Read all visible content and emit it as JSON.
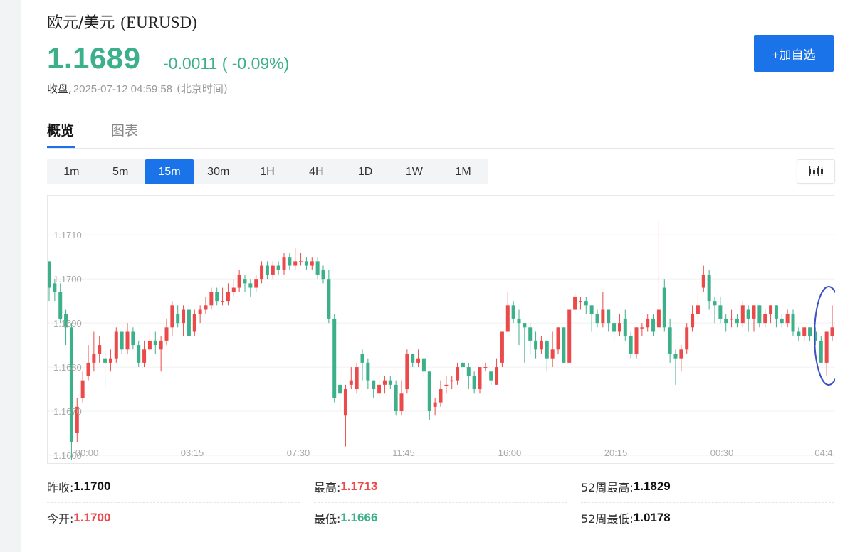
{
  "header": {
    "name": "欧元/美元",
    "code": "(EURUSD)",
    "price": "1.1689",
    "change": "-0.0011 ( -0.09%)",
    "status_label": "收盘,",
    "timestamp": "2025-07-12 04:59:58",
    "timezone": "(北京时间)",
    "watch_button": "+加自选"
  },
  "tabs": [
    "概览",
    "图表"
  ],
  "periods": [
    "1m",
    "5m",
    "15m",
    "30m",
    "1H",
    "4H",
    "1D",
    "1W",
    "1M"
  ],
  "active_period": "15m",
  "chart_type_icon": "candlestick-icon",
  "colors": {
    "up": "#ea4a4a",
    "down": "#3cb08a",
    "accent": "#1a73e8"
  },
  "chart_data": {
    "type": "candlestick",
    "y_ticks": [
      "1.1710",
      "1.1700",
      "1.1690",
      "1.1680",
      "1.1670",
      "1.1660"
    ],
    "x_ticks": [
      "00:00",
      "03:15",
      "07:30",
      "11:45",
      "16:00",
      "20:15",
      "00:30",
      "04:4"
    ],
    "ylim": [
      1.166,
      1.1716
    ],
    "grid": true,
    "note": "candles listed as [open, close, high, low], up=red, down=green",
    "candles": [
      [
        1.1704,
        1.1698,
        1.1704,
        1.1695
      ],
      [
        1.1699,
        1.1697,
        1.17,
        1.1695
      ],
      [
        1.1697,
        1.1691,
        1.1699,
        1.169
      ],
      [
        1.1692,
        1.1689,
        1.1693,
        1.1685
      ],
      [
        1.1689,
        1.1663,
        1.169,
        1.1659
      ],
      [
        1.1665,
        1.1671,
        1.1673,
        1.1663
      ],
      [
        1.1673,
        1.1677,
        1.1679,
        1.1672
      ],
      [
        1.1678,
        1.1681,
        1.1685,
        1.1677
      ],
      [
        1.1681,
        1.1683,
        1.1688,
        1.1679
      ],
      [
        1.1683,
        1.1685,
        1.1687,
        1.1681
      ],
      [
        1.1682,
        1.1681,
        1.1684,
        1.1675
      ],
      [
        1.1681,
        1.1682,
        1.1684,
        1.1679
      ],
      [
        1.1682,
        1.1688,
        1.1689,
        1.1681
      ],
      [
        1.1688,
        1.1684,
        1.1688,
        1.1683
      ],
      [
        1.1684,
        1.1688,
        1.169,
        1.1683
      ],
      [
        1.1688,
        1.1685,
        1.1689,
        1.1684
      ],
      [
        1.1685,
        1.1681,
        1.1686,
        1.168
      ],
      [
        1.1681,
        1.1684,
        1.1686,
        1.168
      ],
      [
        1.1684,
        1.1686,
        1.1688,
        1.1683
      ],
      [
        1.1686,
        1.1685,
        1.1688,
        1.1683
      ],
      [
        1.1684,
        1.1686,
        1.1687,
        1.1679
      ],
      [
        1.1686,
        1.1689,
        1.1691,
        1.1685
      ],
      [
        1.1689,
        1.1694,
        1.1695,
        1.1687
      ],
      [
        1.1692,
        1.169,
        1.1694,
        1.1689
      ],
      [
        1.169,
        1.1693,
        1.1694,
        1.1687
      ],
      [
        1.1693,
        1.1687,
        1.1694,
        1.1687
      ],
      [
        1.1688,
        1.1692,
        1.1693,
        1.1687
      ],
      [
        1.1692,
        1.1693,
        1.1694,
        1.169
      ],
      [
        1.1693,
        1.1694,
        1.1696,
        1.1692
      ],
      [
        1.1694,
        1.1697,
        1.1698,
        1.1693
      ],
      [
        1.1697,
        1.1695,
        1.1698,
        1.1694
      ],
      [
        1.1695,
        1.1695,
        1.1698,
        1.1694
      ],
      [
        1.1695,
        1.1697,
        1.1699,
        1.1694
      ],
      [
        1.1697,
        1.1698,
        1.17,
        1.1696
      ],
      [
        1.1698,
        1.1701,
        1.1702,
        1.1697
      ],
      [
        1.17,
        1.1699,
        1.1701,
        1.1697
      ],
      [
        1.1699,
        1.1698,
        1.17,
        1.1696
      ],
      [
        1.1698,
        1.17,
        1.1701,
        1.1697
      ],
      [
        1.17,
        1.1703,
        1.1704,
        1.1699
      ],
      [
        1.1703,
        1.1701,
        1.1704,
        1.17
      ],
      [
        1.1701,
        1.1703,
        1.1704,
        1.17
      ],
      [
        1.1703,
        1.1702,
        1.1704,
        1.1701
      ],
      [
        1.1702,
        1.1705,
        1.1706,
        1.1701
      ],
      [
        1.1705,
        1.1703,
        1.1706,
        1.1702
      ],
      [
        1.1703,
        1.1704,
        1.1707,
        1.1702
      ],
      [
        1.1704,
        1.1704,
        1.1706,
        1.1703
      ],
      [
        1.1704,
        1.1703,
        1.1705,
        1.1702
      ],
      [
        1.1703,
        1.1704,
        1.1705,
        1.1702
      ],
      [
        1.1704,
        1.1701,
        1.1705,
        1.17
      ],
      [
        1.1702,
        1.17,
        1.1703,
        1.1699
      ],
      [
        1.17,
        1.1691,
        1.1702,
        1.169
      ],
      [
        1.1691,
        1.1673,
        1.1692,
        1.1672
      ],
      [
        1.1676,
        1.1674,
        1.1677,
        1.167
      ],
      [
        1.1669,
        1.1675,
        1.1676,
        1.1662
      ],
      [
        1.1676,
        1.1677,
        1.168,
        1.1675
      ],
      [
        1.1675,
        1.168,
        1.1681,
        1.1674
      ],
      [
        1.1683,
        1.1681,
        1.1684,
        1.1677
      ],
      [
        1.1681,
        1.1677,
        1.1682,
        1.1675
      ],
      [
        1.1677,
        1.1675,
        1.1677,
        1.1673
      ],
      [
        1.1674,
        1.1676,
        1.1678,
        1.1673
      ],
      [
        1.1676,
        1.1677,
        1.1678,
        1.1674
      ],
      [
        1.1677,
        1.1676,
        1.1678,
        1.1675
      ],
      [
        1.1676,
        1.167,
        1.1677,
        1.1669
      ],
      [
        1.167,
        1.1674,
        1.1677,
        1.1669
      ],
      [
        1.1675,
        1.1683,
        1.1684,
        1.1674
      ],
      [
        1.1683,
        1.1681,
        1.1683,
        1.168
      ],
      [
        1.1681,
        1.1682,
        1.1684,
        1.168
      ],
      [
        1.1682,
        1.1679,
        1.1682,
        1.1678
      ],
      [
        1.1679,
        1.167,
        1.1679,
        1.1668
      ],
      [
        1.1671,
        1.1672,
        1.1673,
        1.1669
      ],
      [
        1.1672,
        1.1675,
        1.1677,
        1.1671
      ],
      [
        1.1676,
        1.1676,
        1.1678,
        1.1674
      ],
      [
        1.1677,
        1.1677,
        1.1678,
        1.1675
      ],
      [
        1.1677,
        1.168,
        1.1681,
        1.1676
      ],
      [
        1.1681,
        1.168,
        1.1682,
        1.1678
      ],
      [
        1.168,
        1.1678,
        1.1681,
        1.1675
      ],
      [
        1.1678,
        1.1675,
        1.1679,
        1.1674
      ],
      [
        1.1675,
        1.168,
        1.168,
        1.1674
      ],
      [
        1.168,
        1.168,
        1.1681,
        1.1679
      ],
      [
        1.1679,
        1.1677,
        1.1679,
        1.1676
      ],
      [
        1.1676,
        1.168,
        1.1682,
        1.1676
      ],
      [
        1.1681,
        1.1688,
        1.1688,
        1.168
      ],
      [
        1.1688,
        1.1694,
        1.1697,
        1.1688
      ],
      [
        1.1694,
        1.1691,
        1.1695,
        1.169
      ],
      [
        1.1691,
        1.169,
        1.1693,
        1.1685
      ],
      [
        1.169,
        1.1689,
        1.169,
        1.1681
      ],
      [
        1.1689,
        1.1686,
        1.169,
        1.1683
      ],
      [
        1.1686,
        1.1684,
        1.1688,
        1.1682
      ],
      [
        1.1684,
        1.1686,
        1.1687,
        1.1683
      ],
      [
        1.1686,
        1.1682,
        1.1686,
        1.1679
      ],
      [
        1.1682,
        1.1684,
        1.1688,
        1.168
      ],
      [
        1.1684,
        1.1689,
        1.1689,
        1.1683
      ],
      [
        1.1689,
        1.1681,
        1.1689,
        1.1681
      ],
      [
        1.1681,
        1.1693,
        1.1693,
        1.1681
      ],
      [
        1.1693,
        1.1696,
        1.1697,
        1.1692
      ],
      [
        1.1695,
        1.1695,
        1.1696,
        1.1693
      ],
      [
        1.1695,
        1.1694,
        1.1696,
        1.1692
      ],
      [
        1.1694,
        1.1692,
        1.1694,
        1.1688
      ],
      [
        1.1692,
        1.169,
        1.1693,
        1.1689
      ],
      [
        1.169,
        1.1693,
        1.1697,
        1.1689
      ],
      [
        1.1693,
        1.169,
        1.1693,
        1.1688
      ],
      [
        1.169,
        1.1688,
        1.1691,
        1.1686
      ],
      [
        1.1688,
        1.169,
        1.1692,
        1.1687
      ],
      [
        1.1691,
        1.1687,
        1.1693,
        1.1686
      ],
      [
        1.1687,
        1.1683,
        1.1688,
        1.1682
      ],
      [
        1.1683,
        1.1689,
        1.1689,
        1.1682
      ],
      [
        1.1689,
        1.1689,
        1.169,
        1.1687
      ],
      [
        1.1689,
        1.1691,
        1.1692,
        1.1688
      ],
      [
        1.1691,
        1.1688,
        1.1692,
        1.1687
      ],
      [
        1.1689,
        1.1693,
        1.1713,
        1.1689
      ],
      [
        1.1698,
        1.1689,
        1.17,
        1.1688
      ],
      [
        1.1689,
        1.1683,
        1.1691,
        1.1681
      ],
      [
        1.1683,
        1.1682,
        1.1684,
        1.1676
      ],
      [
        1.1682,
        1.1684,
        1.1685,
        1.1679
      ],
      [
        1.1684,
        1.1689,
        1.169,
        1.1683
      ],
      [
        1.1689,
        1.1692,
        1.1694,
        1.1688
      ],
      [
        1.1692,
        1.1694,
        1.1697,
        1.1691
      ],
      [
        1.1698,
        1.1701,
        1.1703,
        1.1697
      ],
      [
        1.1701,
        1.1695,
        1.1702,
        1.1693
      ],
      [
        1.1695,
        1.1694,
        1.1696,
        1.169
      ],
      [
        1.1694,
        1.1691,
        1.1696,
        1.169
      ],
      [
        1.1691,
        1.169,
        1.1692,
        1.1688
      ],
      [
        1.1691,
        1.1691,
        1.1693,
        1.1689
      ],
      [
        1.1691,
        1.169,
        1.1692,
        1.1689
      ],
      [
        1.169,
        1.1694,
        1.1695,
        1.1689
      ],
      [
        1.1693,
        1.1691,
        1.1694,
        1.1688
      ],
      [
        1.1691,
        1.1694,
        1.1694,
        1.1688
      ],
      [
        1.1694,
        1.169,
        1.1694,
        1.1689
      ],
      [
        1.169,
        1.1692,
        1.1693,
        1.1689
      ],
      [
        1.1692,
        1.1694,
        1.1694,
        1.169
      ],
      [
        1.1694,
        1.1691,
        1.1694,
        1.1689
      ],
      [
        1.1691,
        1.169,
        1.1692,
        1.1689
      ],
      [
        1.169,
        1.1692,
        1.1693,
        1.1689
      ],
      [
        1.1692,
        1.1688,
        1.1693,
        1.1687
      ],
      [
        1.1688,
        1.1687,
        1.1689,
        1.1686
      ],
      [
        1.1687,
        1.1689,
        1.1689,
        1.1686
      ],
      [
        1.1689,
        1.1687,
        1.1689,
        1.1686
      ],
      [
        1.1688,
        1.1686,
        1.1689,
        1.1685
      ],
      [
        1.1686,
        1.1681,
        1.1687,
        1.1681
      ],
      [
        1.1681,
        1.1688,
        1.1688,
        1.1678
      ],
      [
        1.1687,
        1.1689,
        1.1694,
        1.1686
      ]
    ]
  },
  "stats": [
    {
      "label": "昨收:",
      "value": "1.1700",
      "tone": "dark"
    },
    {
      "label": "最高:",
      "value": "1.1713",
      "tone": "red"
    },
    {
      "label": "52周最高:",
      "value": "1.1829",
      "tone": "dark"
    },
    {
      "label": "今开:",
      "value": "1.1700",
      "tone": "red"
    },
    {
      "label": "最低:",
      "value": "1.1666",
      "tone": "green"
    },
    {
      "label": "52周最低:",
      "value": "1.0178",
      "tone": "dark"
    }
  ]
}
